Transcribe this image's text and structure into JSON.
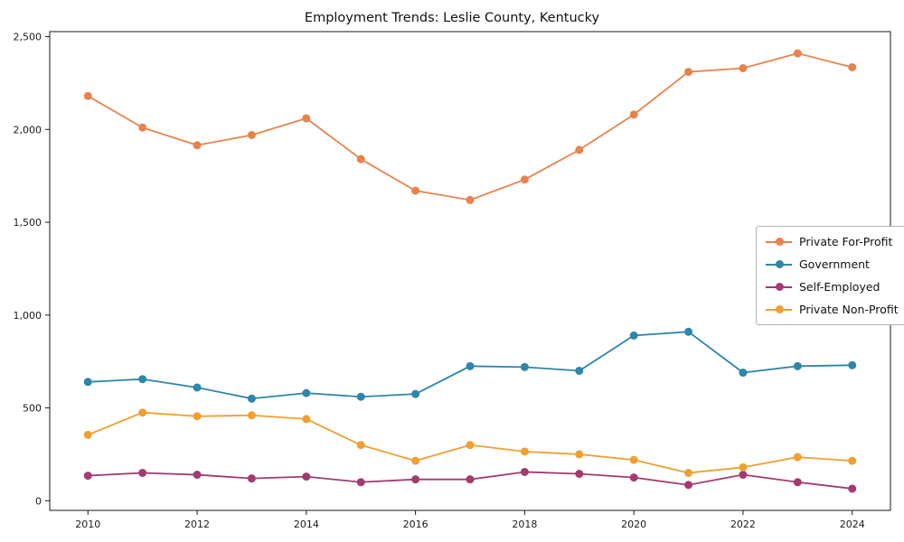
{
  "figure": {
    "background": "#ffffff"
  },
  "chart_data": {
    "type": "line",
    "title": "Employment Trends: Leslie County, Kentucky",
    "xlabel": "",
    "ylabel": "",
    "x": [
      2010,
      2011,
      2012,
      2013,
      2014,
      2015,
      2016,
      2017,
      2018,
      2019,
      2020,
      2021,
      2022,
      2023,
      2024
    ],
    "xticks": [
      2010,
      2012,
      2014,
      2016,
      2018,
      2020,
      2022,
      2024
    ],
    "xtick_labels": [
      "2010",
      "2012",
      "2014",
      "2016",
      "2018",
      "2020",
      "2022",
      "2024"
    ],
    "yticks": [
      0,
      500,
      1000,
      1500,
      2000,
      2500
    ],
    "ytick_labels": [
      "0",
      "500",
      "1,000",
      "1,500",
      "2,000",
      "2,500"
    ],
    "xlim": [
      2010,
      2024
    ],
    "ylim": [
      0,
      2500
    ],
    "grid": false,
    "legend": {
      "position": "center right",
      "border": true
    },
    "series": [
      {
        "name": "Private For-Profit",
        "color": "#E8834E",
        "values": [
          2180,
          2010,
          1915,
          1970,
          2060,
          1840,
          1670,
          1620,
          1730,
          1890,
          2080,
          2310,
          2330,
          2410,
          2335
        ]
      },
      {
        "name": "Government",
        "color": "#2E86AB",
        "values": [
          640,
          655,
          610,
          550,
          580,
          560,
          575,
          725,
          720,
          700,
          890,
          910,
          690,
          725,
          730
        ]
      },
      {
        "name": "Self-Employed",
        "color": "#A23B72",
        "values": [
          135,
          150,
          140,
          120,
          130,
          100,
          115,
          115,
          155,
          145,
          125,
          85,
          140,
          100,
          65
        ]
      },
      {
        "name": "Private Non-Profit",
        "color": "#F0A030",
        "values": [
          355,
          475,
          455,
          460,
          440,
          300,
          215,
          300,
          265,
          250,
          220,
          150,
          180,
          235,
          215
        ]
      }
    ]
  }
}
